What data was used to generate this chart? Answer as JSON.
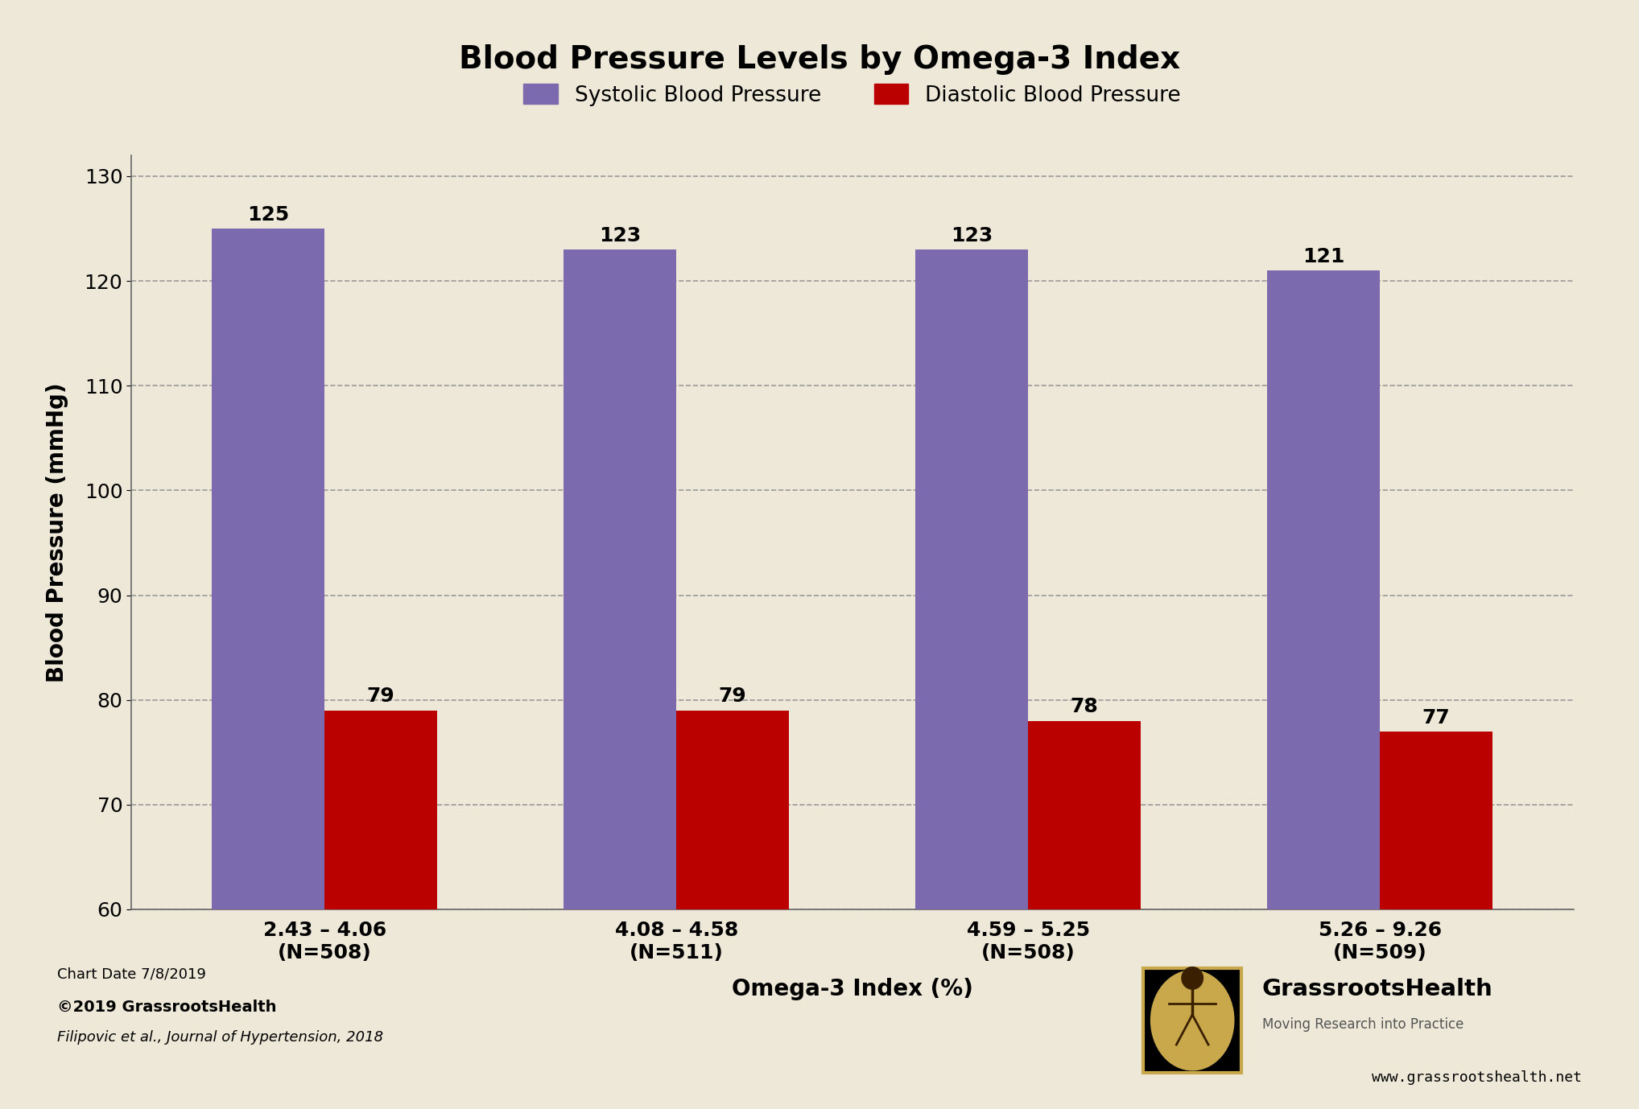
{
  "title": "Blood Pressure Levels by Omega-3 Index",
  "xlabel": "Omega-3 Index (%)",
  "ylabel": "Blood Pressure (mmHg)",
  "background_color": "#EDE8D8",
  "plot_background_color": "#EDE8D8",
  "categories": [
    "2.43 – 4.06\n(N=508)",
    "4.08 – 4.58\n(N=511)",
    "4.59 – 5.25\n(N=508)",
    "5.26 – 9.26\n(N=509)"
  ],
  "systolic_values": [
    125,
    123,
    123,
    121
  ],
  "diastolic_values": [
    79,
    79,
    78,
    77
  ],
  "systolic_color": "#7B6BAE",
  "diastolic_color": "#BB0000",
  "ymin": 60,
  "ylim": [
    60,
    132
  ],
  "yticks": [
    60,
    70,
    80,
    90,
    100,
    110,
    120,
    130
  ],
  "bar_width": 0.32,
  "title_fontsize": 28,
  "axis_label_fontsize": 20,
  "tick_fontsize": 18,
  "legend_fontsize": 19,
  "bar_label_fontsize": 18,
  "footer_line1": "Chart Date 7/8/2019",
  "footer_line2": "©2019 GrassrootsHealth",
  "footer_line3": "Filipovic et al., Journal of Hypertension, 2018",
  "footer_url": "www.grassrootshealth.net",
  "legend_labels": [
    "Systolic Blood Pressure",
    "Diastolic Blood Pressure"
  ],
  "grid_color": "#999999",
  "axis_color": "#666666"
}
